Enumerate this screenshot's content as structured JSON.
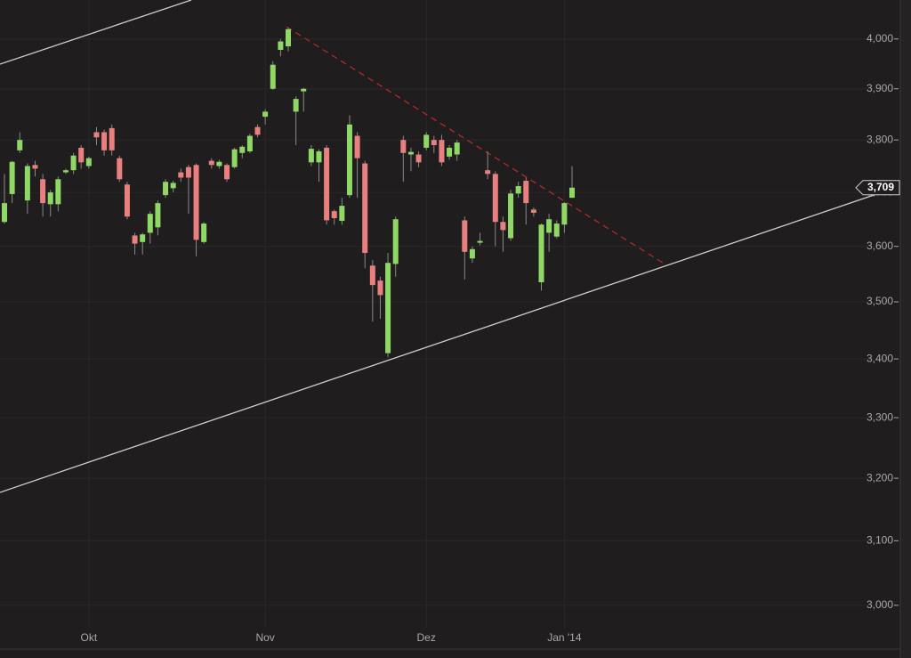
{
  "chart_data": {
    "type": "candlestick",
    "categories": [
      null,
      null,
      null,
      null,
      null,
      null,
      null,
      null,
      null,
      null,
      null,
      "Okt",
      null,
      null,
      null,
      null,
      null,
      null,
      null,
      null,
      null,
      null,
      null,
      null,
      null,
      null,
      null,
      null,
      null,
      null,
      null,
      null,
      null,
      null,
      "Nov",
      null,
      null,
      null,
      null,
      null,
      null,
      null,
      null,
      null,
      null,
      null,
      null,
      null,
      null,
      null,
      null,
      null,
      null,
      null,
      null,
      "Dez",
      null,
      null,
      null,
      null,
      null,
      null,
      null,
      null,
      null,
      null,
      null,
      null,
      null,
      null,
      null,
      null,
      null,
      "Jan '14",
      null
    ],
    "open": [
      3645,
      3697,
      3780,
      3685,
      3752,
      3725,
      3678,
      3678,
      3738,
      3742,
      3785,
      3750,
      3815,
      3815,
      3823,
      3765,
      3715,
      3620,
      3608,
      3625,
      3635,
      3695,
      3708,
      3738,
      3748,
      3752,
      3608,
      3760,
      3750,
      3752,
      3748,
      3775,
      3778,
      3825,
      3845,
      3900,
      3978,
      3985,
      3855,
      3895,
      3757,
      3757,
      3785,
      3665,
      3647,
      3695,
      3808,
      3755,
      3565,
      3538,
      3410,
      3568,
      3800,
      3772,
      3772,
      3785,
      3800,
      3800,
      3768,
      3772,
      3648,
      3578,
      3608,
      3742,
      3735,
      3645,
      3615,
      3698,
      3722,
      3668,
      3535,
      3625,
      3618,
      3640,
      3690
    ],
    "high": [
      3735,
      3760,
      3815,
      3755,
      3760,
      3735,
      3705,
      3730,
      3745,
      3775,
      3790,
      3768,
      3825,
      3820,
      3830,
      3770,
      3720,
      3625,
      3625,
      3665,
      3685,
      3725,
      3722,
      3745,
      3752,
      3755,
      3645,
      3765,
      3762,
      3755,
      3785,
      3790,
      3812,
      3830,
      3860,
      3955,
      4000,
      4022,
      3885,
      3902,
      3790,
      3782,
      3790,
      3668,
      3690,
      3848,
      3815,
      3760,
      3575,
      3545,
      3588,
      3655,
      3808,
      3785,
      3778,
      3815,
      3808,
      3810,
      3790,
      3800,
      3655,
      3600,
      3625,
      3778,
      3740,
      3655,
      3705,
      3720,
      3728,
      3672,
      3642,
      3660,
      3648,
      3682,
      3750
    ],
    "low": [
      3642,
      3680,
      3775,
      3660,
      3730,
      3655,
      3655,
      3665,
      3735,
      3735,
      3745,
      3745,
      3790,
      3770,
      3770,
      3720,
      3650,
      3585,
      3585,
      3605,
      3620,
      3690,
      3700,
      3720,
      3660,
      3582,
      3605,
      3745,
      3745,
      3720,
      3745,
      3765,
      3775,
      3805,
      3830,
      3898,
      3965,
      3975,
      3790,
      3855,
      3750,
      3720,
      3640,
      3640,
      3640,
      3690,
      3690,
      3560,
      3465,
      3470,
      3403,
      3545,
      3720,
      3740,
      3748,
      3780,
      3775,
      3750,
      3762,
      3760,
      3540,
      3570,
      3602,
      3725,
      3600,
      3590,
      3610,
      3690,
      3640,
      3655,
      3520,
      3590,
      3615,
      3625,
      3690
    ],
    "close": [
      3680,
      3758,
      3800,
      3750,
      3745,
      3680,
      3700,
      3725,
      3742,
      3770,
      3757,
      3765,
      3805,
      3780,
      3780,
      3725,
      3655,
      3605,
      3622,
      3660,
      3680,
      3720,
      3718,
      3728,
      3728,
      3612,
      3642,
      3752,
      3758,
      3725,
      3782,
      3787,
      3808,
      3810,
      3855,
      3948,
      3995,
      4020,
      3880,
      3900,
      3783,
      3778,
      3648,
      3652,
      3675,
      3830,
      3765,
      3588,
      3530,
      3512,
      3570,
      3650,
      3775,
      3777,
      3757,
      3810,
      3790,
      3757,
      3785,
      3795,
      3590,
      3595,
      3610,
      3735,
      3645,
      3630,
      3698,
      3712,
      3680,
      3662,
      3640,
      3650,
      3642,
      3680,
      3709
    ],
    "up_color": "#8fd866",
    "down_color": "#e97f7f",
    "ylim": [
      2966,
      4080
    ],
    "log_scale": true,
    "grid": true,
    "yticks": [
      {
        "value": 3000,
        "label": "3,000"
      },
      {
        "value": 3100,
        "label": "3,100"
      },
      {
        "value": 3200,
        "label": "3,200"
      },
      {
        "value": 3300,
        "label": "3,300"
      },
      {
        "value": 3400,
        "label": "3,400"
      },
      {
        "value": 3500,
        "label": "3,500"
      },
      {
        "value": 3600,
        "label": "3,600"
      },
      {
        "value": 3700,
        "label": "3,700"
      },
      {
        "value": 3800,
        "label": "3,800"
      },
      {
        "value": 3900,
        "label": "3,900"
      },
      {
        "value": 4000,
        "label": "4,000"
      }
    ],
    "last_price": {
      "value": 3709,
      "label": "3,709"
    }
  }
}
